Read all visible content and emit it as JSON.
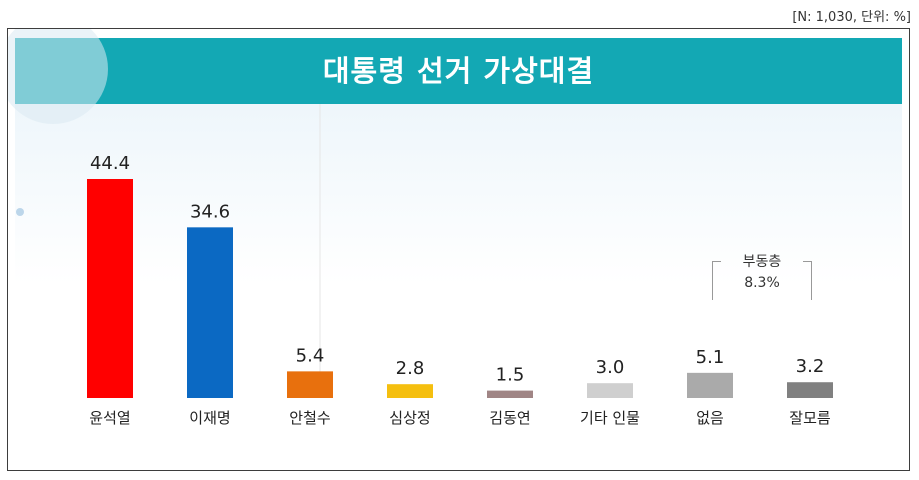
{
  "note": "[N: 1,030,  단위: %]",
  "title": "대통령 선거 가상대결",
  "undecided": {
    "label": "부동층",
    "value": "8.3%"
  },
  "chart_data": {
    "type": "bar",
    "title": "대통령 선거 가상대결",
    "categories": [
      "윤석열",
      "이재명",
      "안철수",
      "심상정",
      "김동연",
      "기타 인물",
      "없음",
      "잘모름"
    ],
    "values": [
      44.4,
      34.6,
      5.4,
      2.8,
      1.5,
      3.0,
      5.1,
      3.2
    ],
    "value_labels": [
      "44.4",
      "34.6",
      "5.4",
      "2.8",
      "1.5",
      "3.0",
      "5.1",
      "3.2"
    ],
    "colors": [
      "#ff0000",
      "#0b69c3",
      "#e8700d",
      "#f5bf0f",
      "#a08585",
      "#cfcfcf",
      "#aaaaaa",
      "#808080"
    ],
    "ylim": [
      0,
      44.4
    ],
    "grid": false,
    "unit": "%"
  }
}
